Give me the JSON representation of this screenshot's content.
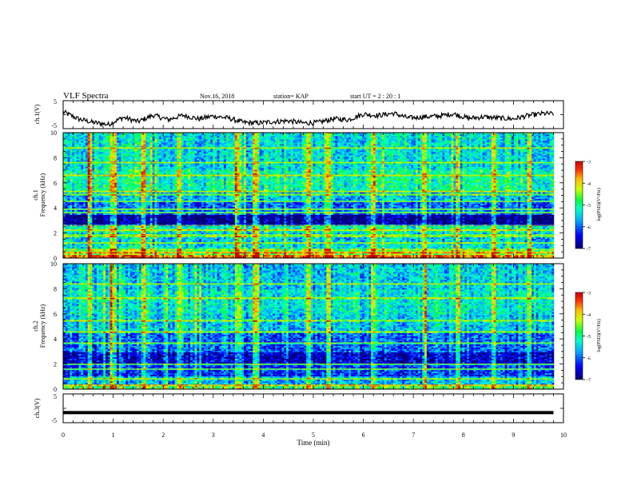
{
  "header": {
    "title": "VLF Spectra",
    "date": "Nov.16, 2018",
    "station": "station= KAP",
    "start": "start  UT =   2 : 20 : 1"
  },
  "chart_data": [
    {
      "type": "line",
      "name": "ch1-waveform",
      "ylabel": "ch.1(V)",
      "ylim": [
        -5,
        5
      ],
      "y_ticks": [
        "5",
        "-5"
      ],
      "xlim": [
        0,
        10
      ],
      "x": [
        0,
        0.3,
        0.6,
        0.9,
        1.2,
        1.5,
        1.8,
        2.1,
        2.4,
        2.7,
        3.0,
        3.3,
        3.6,
        3.9,
        4.2,
        4.5,
        4.8,
        5.1,
        5.4,
        5.7,
        6.0,
        6.3,
        6.6,
        6.9,
        7.2,
        7.5,
        7.8,
        8.1,
        8.4,
        8.7,
        9.0,
        9.3,
        9.6,
        9.8
      ],
      "y": [
        1.0,
        -1.5,
        -2.8,
        -3.5,
        -1.0,
        -2.5,
        -0.2,
        -1.8,
        -0.2,
        -1.5,
        -0.5,
        -1.2,
        -2.8,
        -3.0,
        -2.5,
        -2.2,
        -3.0,
        -2.8,
        -1.5,
        -1.8,
        0.2,
        -0.3,
        0.5,
        -1.2,
        -0.8,
        -0.5,
        0.3,
        -1.3,
        -0.8,
        -1.2,
        -1.5,
        -0.3,
        0.4,
        0.3
      ]
    },
    {
      "type": "heatmap",
      "name": "ch1-spectrogram",
      "ylabel": "ch.1\nFrequency  (kHz)",
      "ylim": [
        0,
        10
      ],
      "y_ticks": [
        "0",
        "2",
        "4",
        "6",
        "8",
        "10"
      ],
      "xlim": [
        0,
        10
      ],
      "colorbar": {
        "label": "log(PSD)(V²/Hz)",
        "range": [
          -7,
          -3
        ],
        "ticks": [
          "-3",
          "-4",
          "-5",
          "-6",
          "-7"
        ]
      },
      "bands_khz": [
        {
          "f": [
            0.0,
            0.3
          ],
          "v": -3.6
        },
        {
          "f": [
            0.3,
            0.8
          ],
          "v": -4.5
        },
        {
          "f": [
            0.8,
            1.2
          ],
          "v": -5.4
        },
        {
          "f": [
            1.2,
            2.0
          ],
          "v": -5.5
        },
        {
          "f": [
            2.0,
            2.6
          ],
          "v": -5.1
        },
        {
          "f": [
            2.6,
            3.5
          ],
          "v": -6.9
        },
        {
          "f": [
            3.5,
            4.6
          ],
          "v": -6.0
        },
        {
          "f": [
            4.6,
            5.2
          ],
          "v": -5.6
        },
        {
          "f": [
            5.2,
            7.0
          ],
          "v": -5.1
        },
        {
          "f": [
            7.0,
            10.0
          ],
          "v": -5.4
        }
      ],
      "lines_khz": [
        0.5,
        1.2,
        1.8,
        2.2,
        2.6,
        3.6,
        3.9,
        4.5,
        5.1,
        5.3,
        6.6,
        7.6,
        8.8
      ],
      "bursts_min": [
        0.55,
        1.0,
        1.6,
        2.3,
        3.5,
        3.85,
        4.9,
        5.3,
        6.2,
        7.2,
        7.9,
        8.6,
        9.3
      ]
    },
    {
      "type": "heatmap",
      "name": "ch2-spectrogram",
      "ylabel": "ch.2\nFrequency  (kHz)",
      "ylim": [
        0,
        10
      ],
      "y_ticks": [
        "0",
        "2",
        "4",
        "6",
        "8",
        "10"
      ],
      "xlim": [
        0,
        10
      ],
      "colorbar": {
        "label": "log(PSD)(V²/Hz)",
        "range": [
          -7,
          -3
        ],
        "ticks": [
          "-3",
          "-4",
          "-5",
          "-6",
          "-7"
        ]
      },
      "bands_khz": [
        {
          "f": [
            0.0,
            0.4
          ],
          "v": -4.7
        },
        {
          "f": [
            0.4,
            1.0
          ],
          "v": -5.6
        },
        {
          "f": [
            1.0,
            2.0
          ],
          "v": -6.2
        },
        {
          "f": [
            2.0,
            3.0
          ],
          "v": -6.6
        },
        {
          "f": [
            3.0,
            4.5
          ],
          "v": -6.0
        },
        {
          "f": [
            4.5,
            6.0
          ],
          "v": -5.5
        },
        {
          "f": [
            6.0,
            8.0
          ],
          "v": -5.3
        },
        {
          "f": [
            8.0,
            10.0
          ],
          "v": -5.5
        }
      ],
      "lines_khz": [
        0.3,
        0.8,
        1.6,
        2.0,
        3.7,
        4.6,
        5.5,
        7.3,
        8.4
      ],
      "bursts_min": [
        0.55,
        1.0,
        1.6,
        2.3,
        3.5,
        3.85,
        4.9,
        5.3,
        6.2,
        7.2,
        7.9,
        8.6,
        9.3
      ]
    },
    {
      "type": "line",
      "name": "ch3-waveform",
      "ylabel": "ch.3(V)",
      "ylim": [
        -5,
        5
      ],
      "y_ticks": [
        "5",
        "-5"
      ],
      "xlim": [
        0,
        10
      ],
      "xlabel": "Time  (min)",
      "x_ticks": [
        "0",
        "1",
        "2",
        "3",
        "4",
        "5",
        "6",
        "7",
        "8",
        "9",
        "10"
      ],
      "x": [
        0,
        9.8
      ],
      "y": [
        -1.5,
        -1.5
      ]
    }
  ]
}
